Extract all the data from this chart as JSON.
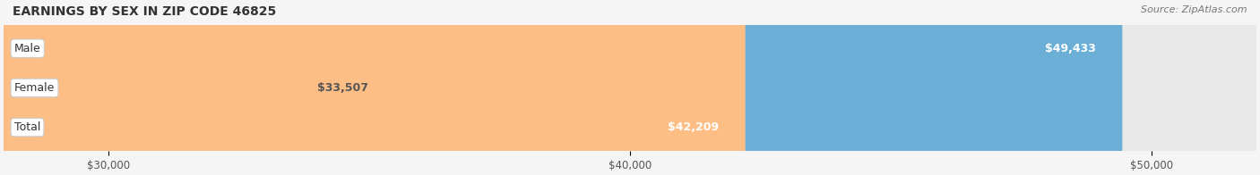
{
  "title": "EARNINGS BY SEX IN ZIP CODE 46825",
  "source": "Source: ZipAtlas.com",
  "categories": [
    "Male",
    "Female",
    "Total"
  ],
  "values": [
    49433,
    33507,
    42209
  ],
  "bar_colors": [
    "#6BAED6",
    "#F4A0B5",
    "#FDBE85"
  ],
  "bar_edge_colors": [
    "#9ECAE1",
    "#FCBFD2",
    "#FDD4A0"
  ],
  "label_color": "#333333",
  "value_label_colors": [
    "white",
    "#555555",
    "white"
  ],
  "xmin": 28000,
  "xmax": 52000,
  "xticks": [
    30000,
    40000,
    50000
  ],
  "xtick_labels": [
    "$30,000",
    "$40,000",
    "$50,000"
  ],
  "background_color": "#f5f5f5",
  "bar_bg_color": "#e8e8e8",
  "figwidth": 14.06,
  "figheight": 1.96
}
